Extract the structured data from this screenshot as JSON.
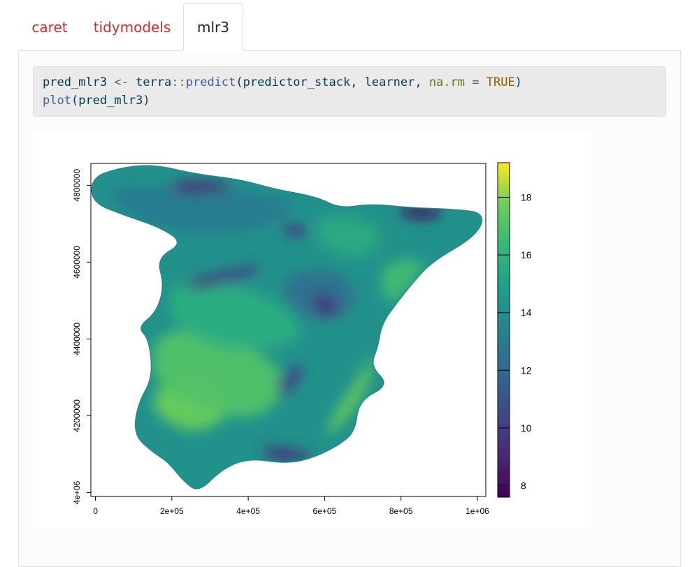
{
  "tabs": [
    {
      "label": "caret",
      "active": false
    },
    {
      "label": "tidymodels",
      "active": false
    },
    {
      "label": "mlr3",
      "active": true
    }
  ],
  "code": {
    "line1": {
      "lhs": "pred_mlr3",
      "assign": " <- ",
      "ns": "terra",
      "sep": "::",
      "fn": "predict",
      "open": "(",
      "arg1": "predictor_stack",
      "comma1": ", ",
      "arg2": "learner",
      "comma2": ", ",
      "argname": "na.rm",
      "eq": " = ",
      "val": "TRUE",
      "close": ")"
    },
    "line2": {
      "fn": "plot",
      "open": "(",
      "arg": "pred_mlr3",
      "close": ")"
    }
  },
  "colors": {
    "tab_link": "#c9302c",
    "code_bg": "#eaeaea",
    "viridis_low": "#440154",
    "viridis_high": "#fde725"
  },
  "chart_data": {
    "type": "heatmap",
    "title": "",
    "xlabel": "",
    "ylabel": "",
    "x_ticks": [
      {
        "value": 0,
        "label": "0"
      },
      {
        "value": 200000,
        "label": "2e+05"
      },
      {
        "value": 400000,
        "label": "4e+05"
      },
      {
        "value": 600000,
        "label": "6e+05"
      },
      {
        "value": 800000,
        "label": "8e+05"
      },
      {
        "value": 1000000,
        "label": "1e+06"
      }
    ],
    "y_ticks": [
      {
        "value": 4000000,
        "label": "4e+06"
      },
      {
        "value": 4200000,
        "label": "4200000"
      },
      {
        "value": 4400000,
        "label": "4400000"
      },
      {
        "value": 4600000,
        "label": "4600000"
      },
      {
        "value": 4800000,
        "label": "4800000"
      }
    ],
    "xlim": [
      -12000,
      1022000
    ],
    "ylim": [
      3990000,
      4857000
    ],
    "legend": {
      "placement": "right",
      "range": [
        7.6,
        19.2
      ],
      "ticks": [
        8,
        10,
        12,
        14,
        16,
        18
      ],
      "palette": "viridis"
    },
    "map_outline": [
      [
        -10000,
        4820000
      ],
      [
        60000,
        4845000
      ],
      [
        150000,
        4855000
      ],
      [
        260000,
        4830000
      ],
      [
        380000,
        4815000
      ],
      [
        470000,
        4790000
      ],
      [
        580000,
        4770000
      ],
      [
        640000,
        4740000
      ],
      [
        720000,
        4752000
      ],
      [
        820000,
        4742000
      ],
      [
        940000,
        4738000
      ],
      [
        1020000,
        4728000
      ],
      [
        1000000,
        4670000
      ],
      [
        880000,
        4600000
      ],
      [
        830000,
        4545000
      ],
      [
        790000,
        4495000
      ],
      [
        750000,
        4440000
      ],
      [
        740000,
        4380000
      ],
      [
        720000,
        4330000
      ],
      [
        770000,
        4280000
      ],
      [
        690000,
        4240000
      ],
      [
        680000,
        4160000
      ],
      [
        640000,
        4125000
      ],
      [
        570000,
        4090000
      ],
      [
        500000,
        4075000
      ],
      [
        400000,
        4090000
      ],
      [
        330000,
        4060000
      ],
      [
        270000,
        4000000
      ],
      [
        230000,
        4030000
      ],
      [
        190000,
        4080000
      ],
      [
        150000,
        4105000
      ],
      [
        100000,
        4150000
      ],
      [
        110000,
        4230000
      ],
      [
        150000,
        4300000
      ],
      [
        140000,
        4400000
      ],
      [
        110000,
        4430000
      ],
      [
        160000,
        4470000
      ],
      [
        180000,
        4540000
      ],
      [
        160000,
        4610000
      ],
      [
        230000,
        4650000
      ],
      [
        170000,
        4690000
      ],
      [
        80000,
        4720000
      ],
      [
        -10000,
        4755000
      ]
    ],
    "map_zones": [
      {
        "value": 17.6,
        "points": [
          [
            120000,
            4230000
          ],
          [
            260000,
            4140000
          ],
          [
            390000,
            4230000
          ],
          [
            240000,
            4330000
          ]
        ]
      },
      {
        "value": 17.0,
        "points": [
          [
            160000,
            4430000
          ],
          [
            360000,
            4410000
          ],
          [
            520000,
            4300000
          ],
          [
            430000,
            4180000
          ],
          [
            240000,
            4230000
          ],
          [
            140000,
            4300000
          ]
        ]
      },
      {
        "value": 15.8,
        "points": [
          [
            200000,
            4570000
          ],
          [
            460000,
            4520000
          ],
          [
            570000,
            4400000
          ],
          [
            380000,
            4360000
          ],
          [
            190000,
            4430000
          ]
        ]
      },
      {
        "value": 17.5,
        "points": [
          [
            600000,
            4130000
          ],
          [
            700000,
            4240000
          ],
          [
            740000,
            4380000
          ],
          [
            690000,
            4300000
          ],
          [
            620000,
            4200000
          ]
        ]
      },
      {
        "value": 16.6,
        "points": [
          [
            740000,
            4600000
          ],
          [
            880000,
            4610000
          ],
          [
            820000,
            4530000
          ],
          [
            760000,
            4480000
          ]
        ]
      },
      {
        "value": 15.6,
        "points": [
          [
            580000,
            4730000
          ],
          [
            760000,
            4700000
          ],
          [
            720000,
            4600000
          ],
          [
            580000,
            4640000
          ]
        ]
      },
      {
        "value": 13.0,
        "points": [
          [
            20000,
            4800000
          ],
          [
            320000,
            4795000
          ],
          [
            560000,
            4760000
          ],
          [
            440000,
            4680000
          ],
          [
            200000,
            4670000
          ],
          [
            60000,
            4740000
          ]
        ]
      },
      {
        "value": 12.4,
        "points": [
          [
            460000,
            4560000
          ],
          [
            640000,
            4590000
          ],
          [
            700000,
            4480000
          ],
          [
            560000,
            4430000
          ]
        ]
      },
      {
        "value": 9.0,
        "points": [
          [
            210000,
            4815000
          ],
          [
            370000,
            4805000
          ],
          [
            330000,
            4780000
          ],
          [
            190000,
            4780000
          ]
        ]
      },
      {
        "value": 9.2,
        "points": [
          [
            470000,
            4700000
          ],
          [
            570000,
            4690000
          ],
          [
            520000,
            4660000
          ]
        ]
      },
      {
        "value": 9.8,
        "points": [
          [
            230000,
            4550000
          ],
          [
            440000,
            4600000
          ],
          [
            420000,
            4570000
          ],
          [
            250000,
            4520000
          ]
        ]
      },
      {
        "value": 9.6,
        "points": [
          [
            570000,
            4525000
          ],
          [
            640000,
            4500000
          ],
          [
            620000,
            4450000
          ],
          [
            570000,
            4480000
          ]
        ]
      },
      {
        "value": 10.2,
        "points": [
          [
            500000,
            4320000
          ],
          [
            560000,
            4340000
          ],
          [
            500000,
            4240000
          ],
          [
            470000,
            4270000
          ]
        ]
      },
      {
        "value": 9.2,
        "points": [
          [
            430000,
            4125000
          ],
          [
            590000,
            4100000
          ],
          [
            520000,
            4080000
          ],
          [
            450000,
            4090000
          ]
        ]
      },
      {
        "value": 8.0,
        "points": [
          [
            800000,
            4750000
          ],
          [
            920000,
            4740000
          ],
          [
            880000,
            4710000
          ],
          [
            800000,
            4720000
          ]
        ]
      }
    ]
  }
}
